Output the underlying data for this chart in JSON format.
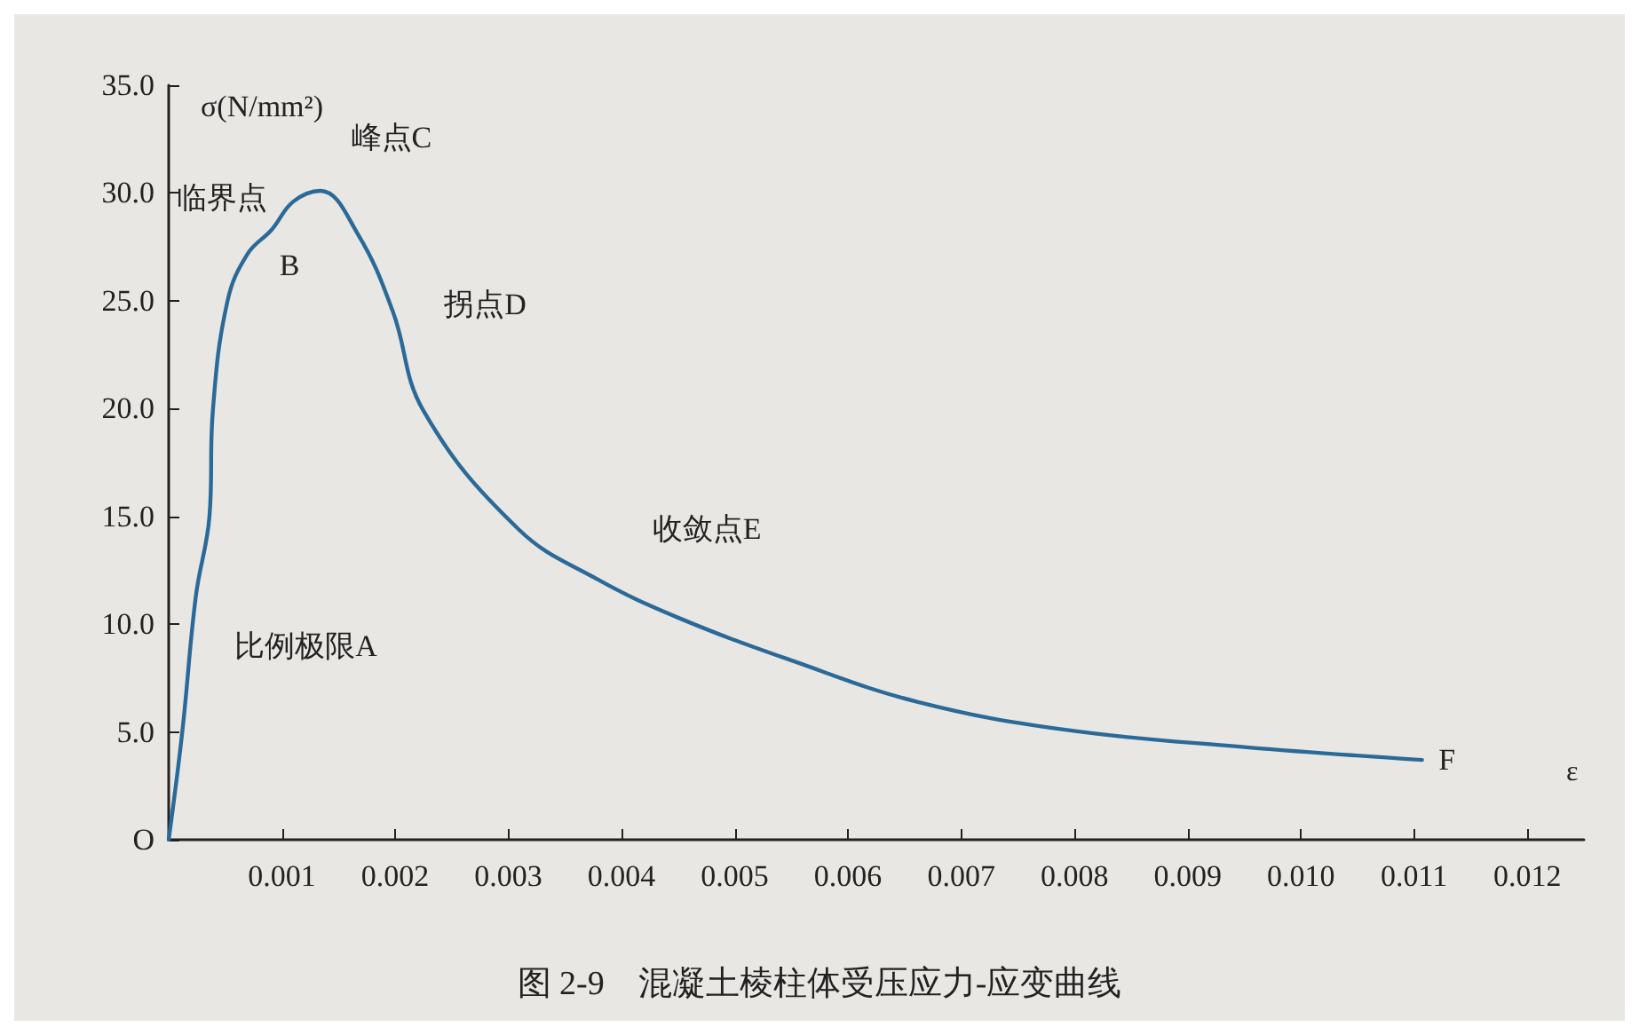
{
  "chart_data": {
    "type": "line",
    "title": "图 2-9　混凝土棱柱体受压应力-应变曲线",
    "xlabel": "ε",
    "ylabel": "σ(N/mm²)",
    "x": [
      0,
      0.00012,
      0.00024,
      0.00036,
      0.00039,
      0.00052,
      0.0007,
      0.00091,
      0.0011,
      0.00134,
      0.00167,
      0.00198,
      0.00225,
      0.00309,
      0.00378,
      0.0045,
      0.00551,
      0.00661,
      0.00792,
      0.0095,
      0.01107
    ],
    "series": [
      {
        "color": "#2b6a98",
        "values": [
          0,
          5,
          11.3,
          15,
          19.9,
          25,
          27.2,
          28.3,
          29.6,
          30.1,
          28.1,
          24.5,
          19.9,
          14.4,
          12.1,
          10.3,
          8.3,
          6.4,
          5.1,
          4.3,
          3.7
        ]
      }
    ],
    "xlim": [
      0,
      0.0125
    ],
    "ylim": [
      0,
      35
    ],
    "xticks": [
      0.001,
      0.002,
      0.003,
      0.004,
      0.005,
      0.006,
      0.007,
      0.008,
      0.009,
      {
        "value": 0.01,
        "label": "0.010"
      },
      0.011,
      0.012
    ],
    "yticks": [
      {
        "value": 0,
        "label": "O"
      },
      {
        "value": 5,
        "label": "5.0"
      },
      {
        "value": 10,
        "label": "10.0"
      },
      {
        "value": 15,
        "label": "15.0"
      },
      {
        "value": 20,
        "label": "20.0"
      },
      {
        "value": 25,
        "label": "25.0"
      },
      {
        "value": 30,
        "label": "30.0"
      },
      {
        "value": 35,
        "label": "35.0"
      }
    ],
    "annotations": [
      {
        "text": "比例极限A",
        "x": 0.00024,
        "y": 11.3
      },
      {
        "text": "临界点",
        "x": 0.00091,
        "y": 28.3
      },
      {
        "text": "B",
        "x": 0.00091,
        "y": 28.3
      },
      {
        "text": "峰点C",
        "x": 0.00134,
        "y": 30.1
      },
      {
        "text": "拐点D",
        "x": 0.00198,
        "y": 24.5
      },
      {
        "text": "收敛点E",
        "x": 0.00378,
        "y": 12.1
      },
      {
        "text": "F",
        "x": 0.01107,
        "y": 3.7
      }
    ],
    "grid": false,
    "marker": "none",
    "line_style": "solid"
  }
}
